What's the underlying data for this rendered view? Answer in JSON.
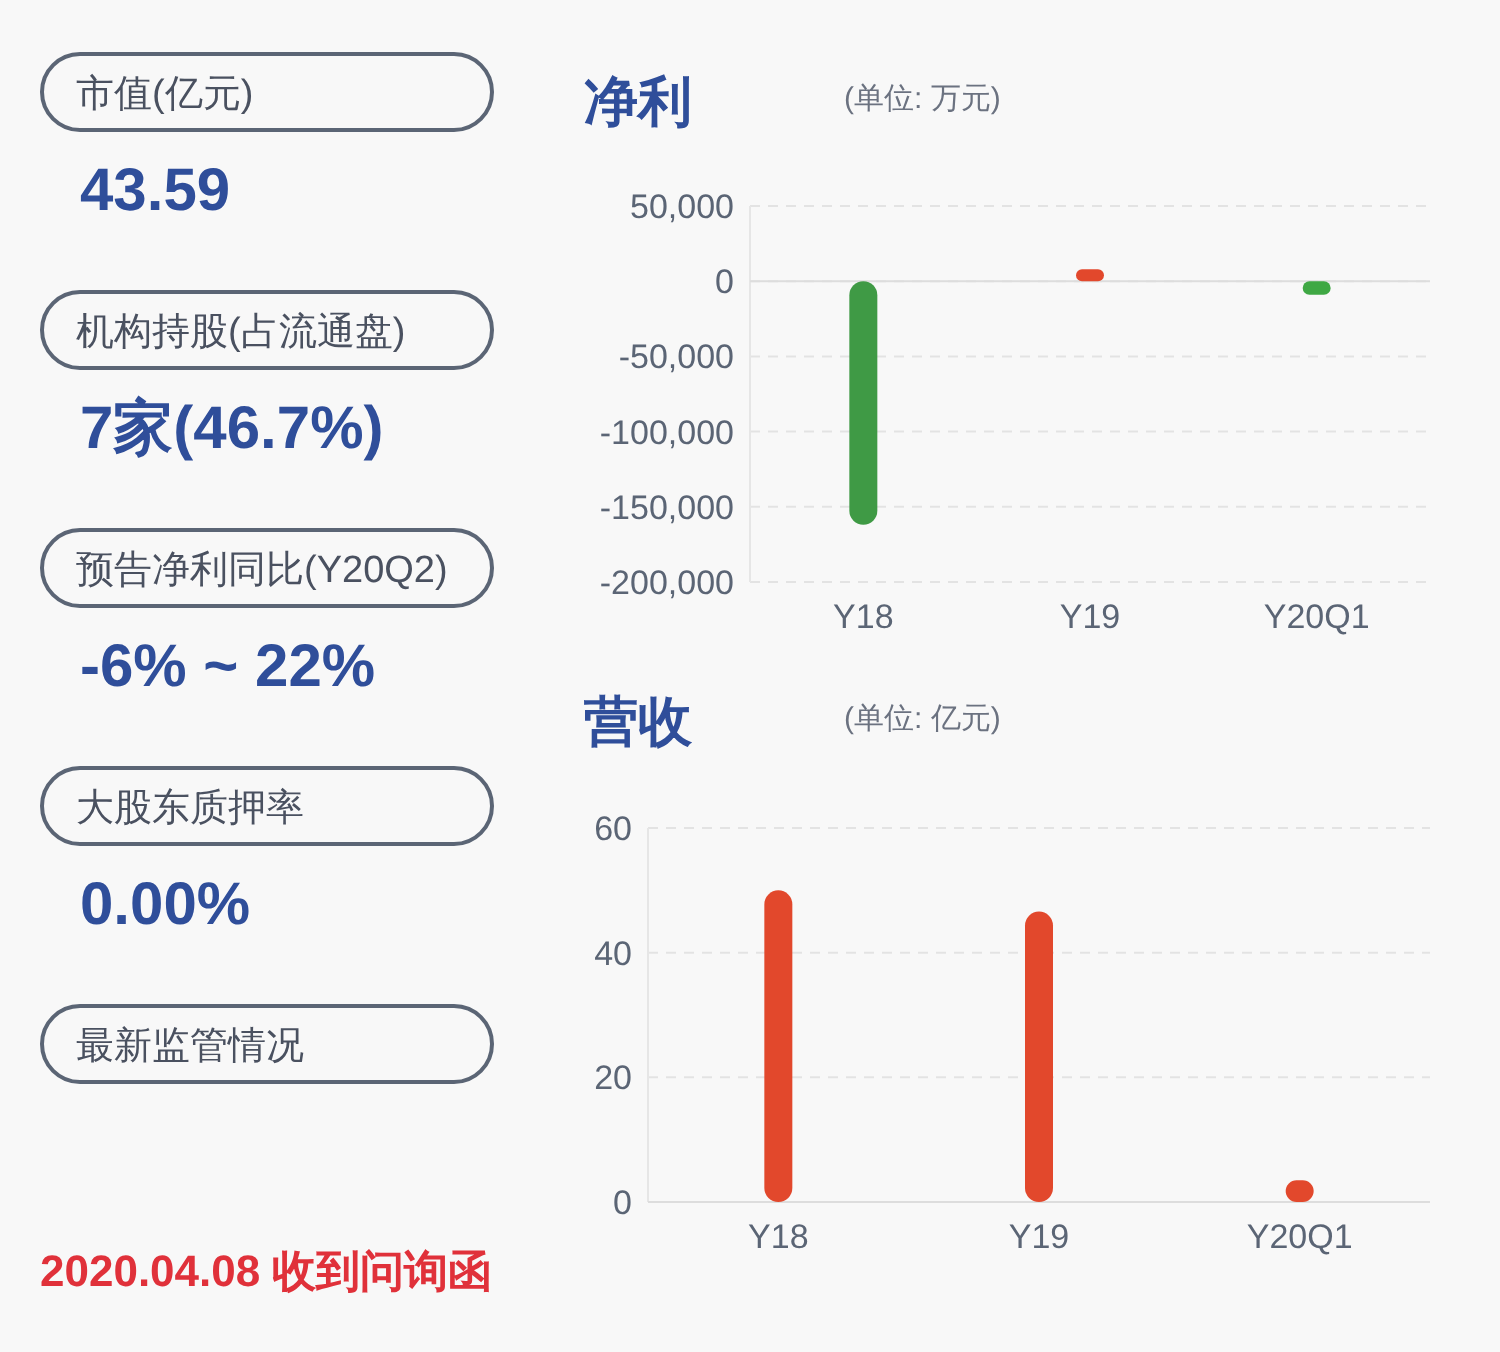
{
  "chart_data": [
    {
      "type": "other",
      "annotations": [
        "市值(亿元)",
        "43.59",
        "机构持股(占流通盘)",
        "7家(46.7%)",
        "预告净利同比(Y20Q2)",
        "-6% ~ 22%",
        "大股东质押率",
        "0.00%",
        "最新监管情况",
        "2020.04.08 收到问询函"
      ]
    },
    {
      "type": "bar",
      "title": "净利",
      "subtitle": "(单位: 万元)",
      "categories": [
        "Y18",
        "Y19",
        "Y20Q1"
      ],
      "values": [
        -162000,
        8000,
        -9000
      ],
      "colors": [
        "#3f9a45",
        "#e2482c",
        "#3fa844"
      ],
      "ylim": [
        -200000,
        50000
      ],
      "yticks": [
        {
          "value": -200000,
          "label": "-200,000"
        },
        {
          "value": -150000,
          "label": "-150,000"
        },
        {
          "value": -100000,
          "label": "-100,000"
        },
        {
          "value": -50000,
          "label": "-50,000"
        },
        0,
        {
          "value": 50000,
          "label": "50,000"
        }
      ],
      "grid": "y"
    },
    {
      "type": "bar",
      "title": "营收",
      "subtitle": "(单位: 亿元)",
      "categories": [
        "Y18",
        "Y19",
        "Y20Q1"
      ],
      "values": [
        50,
        46.6,
        3.5
      ],
      "color": "#e2482c",
      "ylim": [
        0,
        60
      ],
      "yticks": [
        0,
        20,
        40,
        60
      ],
      "grid": "y"
    }
  ]
}
